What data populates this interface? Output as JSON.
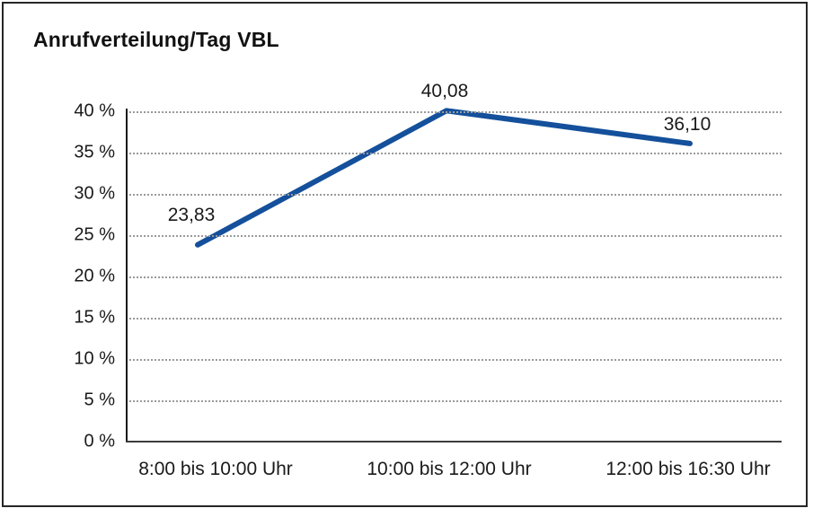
{
  "title": "Anrufverteilung/Tag VBL",
  "chart_data": {
    "type": "line",
    "title": "Anrufverteilung/Tag VBL",
    "categories": [
      "8:00 bis 10:00 Uhr",
      "10:00 bis 12:00 Uhr",
      "12:00 bis 16:30 Uhr"
    ],
    "series": [
      {
        "name": "Anrufverteilung",
        "values": [
          23.83,
          40.08,
          36.1
        ],
        "data_labels": [
          "23,83",
          "40,08",
          "36,10"
        ]
      }
    ],
    "xlabel": "",
    "ylabel": "",
    "ylim": [
      0,
      40
    ],
    "ytick_step": 5,
    "ytick_labels": [
      "0 %",
      "5 %",
      "10 %",
      "15 %",
      "20 %",
      "25 %",
      "30 %",
      "35 %",
      "40 %"
    ],
    "grid": "horizontal-dotted",
    "legend": "none"
  },
  "colors": {
    "line": "#14509B",
    "grid": "#9a9a9a",
    "y_axis": "#1a1a1a",
    "x_axis": "#3c3c3c",
    "text": "#1a1a1a",
    "border": "#262626",
    "background": "#ffffff"
  }
}
